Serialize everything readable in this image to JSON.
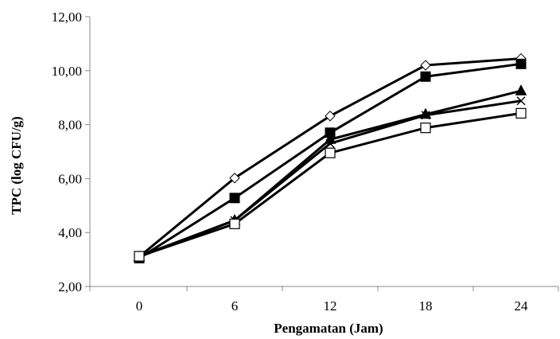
{
  "chart_data": {
    "type": "line",
    "title": "",
    "xlabel": "Pengamatan (Jam)",
    "ylabel": "TPC (log CFU/g)",
    "x": [
      0,
      6,
      12,
      18,
      24
    ],
    "x_tick_labels": [
      "0",
      "6",
      "12",
      "18",
      "24"
    ],
    "ylim": [
      2,
      12
    ],
    "y_tick_labels": [
      "2,00",
      "4,00",
      "6,00",
      "8,00",
      "10,00",
      "12,00"
    ],
    "y_ticks": [
      2,
      4,
      6,
      8,
      10,
      12
    ],
    "grid": false,
    "legend": "none",
    "line_color": "#000000",
    "series": [
      {
        "marker": "open-diamond",
        "values": [
          3.1,
          6.02,
          8.32,
          10.2,
          10.45
        ]
      },
      {
        "marker": "filled-square",
        "values": [
          3.05,
          5.28,
          7.7,
          9.78,
          10.25
        ]
      },
      {
        "marker": "filled-triangle",
        "values": [
          3.1,
          4.45,
          7.45,
          8.38,
          9.25
        ]
      },
      {
        "marker": "x-mark",
        "values": [
          3.12,
          4.45,
          7.3,
          8.35,
          8.88
        ]
      },
      {
        "marker": "open-square",
        "values": [
          3.12,
          4.32,
          6.95,
          7.88,
          8.42
        ]
      }
    ]
  }
}
